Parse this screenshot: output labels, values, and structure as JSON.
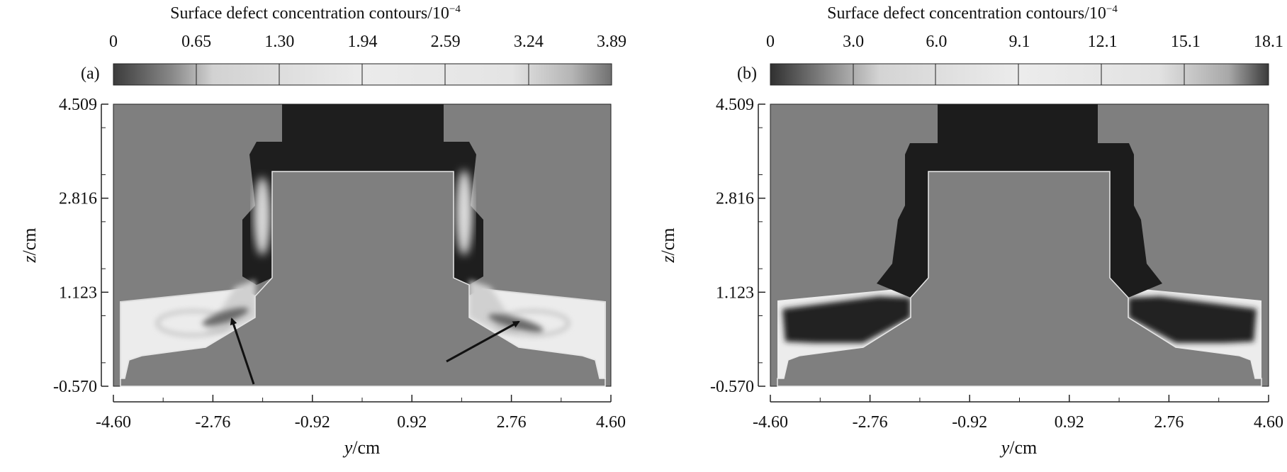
{
  "colorbar_unit_exponent": "−4",
  "chart_data": [
    {
      "panel": "(a)",
      "type": "heatmap",
      "title": "Surface defect concentration contours/10",
      "colorbar": {
        "ticks": [
          "0",
          "0.65",
          "1.30",
          "1.94",
          "2.59",
          "3.24",
          "3.89"
        ],
        "range": [
          0,
          3.89
        ],
        "unit_multiplier": "10^-4"
      },
      "xlabel_var": "y",
      "xlabel_unit": "/cm",
      "ylabel_var": "z",
      "ylabel_unit": "/cm",
      "x_ticks": [
        "-4.60",
        "-2.76",
        "-0.92",
        "0.92",
        "2.76",
        "4.60"
      ],
      "y_ticks": [
        "4.509",
        "2.816",
        "1.123",
        "-0.570"
      ],
      "xlim": [
        -4.6,
        4.6
      ],
      "ylim": [
        -0.57,
        4.509
      ],
      "annotations": [
        "arrow pointing to left high-concentration region",
        "arrow pointing to right high-concentration region"
      ]
    },
    {
      "panel": "(b)",
      "type": "heatmap",
      "title": "Surface defect concentration contours/10",
      "colorbar": {
        "ticks": [
          "0",
          "3.0",
          "6.0",
          "9.1",
          "12.1",
          "15.1",
          "18.1"
        ],
        "range": [
          0,
          18.1
        ],
        "unit_multiplier": "10^-4"
      },
      "xlabel_var": "y",
      "xlabel_unit": "/cm",
      "ylabel_var": "z",
      "ylabel_unit": "/cm",
      "x_ticks": [
        "-4.60",
        "-2.76",
        "-0.92",
        "0.92",
        "2.76",
        "4.60"
      ],
      "y_ticks": [
        "4.509",
        "2.816",
        "1.123",
        "-0.570"
      ],
      "xlim": [
        -4.6,
        4.6
      ],
      "ylim": [
        -0.57,
        4.509
      ]
    }
  ]
}
